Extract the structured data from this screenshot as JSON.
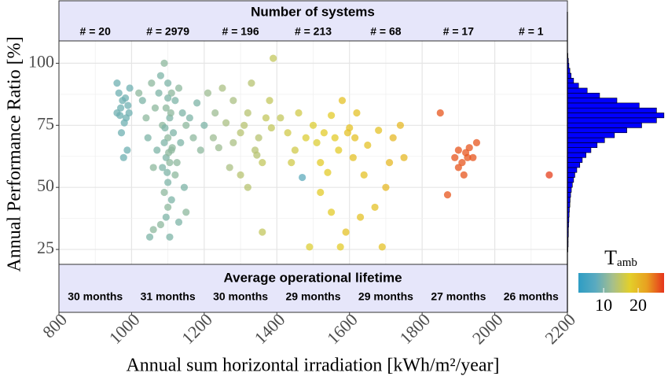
{
  "chart_data": {
    "type": "scatter",
    "xlabel": "Annual sum horizontal irradiation [kWh/m²/year]",
    "ylabel": "Annual Performance Ratio [%]",
    "xlim": [
      800,
      2200
    ],
    "xticks": [
      800,
      1000,
      1200,
      1400,
      1600,
      1800,
      2000,
      2200
    ],
    "ylim": [
      19,
      109
    ],
    "yticks": [
      25,
      50,
      75,
      100
    ],
    "grid": true,
    "top_band": {
      "title": "Number of systems",
      "labels": [
        "# = 20",
        "# = 2979",
        "# = 196",
        "# = 213",
        "# = 68",
        "# = 17",
        "# = 1"
      ]
    },
    "bottom_band": {
      "title": "Average operational lifetime",
      "labels": [
        "30 months",
        "31 months",
        "30 months",
        "29 months",
        "29 months",
        "27 months",
        "26 months"
      ]
    },
    "colorbar": {
      "title": "T",
      "title_sub": "amb",
      "clim": [
        2.7,
        27.5
      ],
      "ticks": [
        10,
        20
      ],
      "colorscale": [
        "#2e9dc4",
        "#5aaac0",
        "#a6bf8c",
        "#e3cf2a",
        "#e8a020",
        "#e6341c"
      ]
    },
    "x": [
      970,
      975,
      960,
      985,
      990,
      965,
      980,
      995,
      972,
      988,
      978,
      960,
      993,
      983,
      968,
      1080,
      1090,
      1100,
      1110,
      1120,
      1095,
      1105,
      1085,
      1115,
      1100,
      1090,
      1110,
      1095,
      1105,
      1085,
      1120,
      1100,
      1090,
      1110,
      1100,
      1095,
      1080,
      1105,
      1060,
      1050,
      1040,
      1030,
      1020,
      1045,
      1130,
      1140,
      1150,
      1135,
      1125,
      1145,
      1060,
      1070,
      1065,
      1075,
      1055,
      1100,
      1108,
      1092,
      1112,
      1098,
      1102,
      1130,
      1150,
      1160,
      1170,
      1180,
      1190,
      1200,
      1210,
      1230,
      1250,
      1260,
      1280,
      1300,
      1320,
      1330,
      1340,
      1350,
      1360,
      1370,
      1380,
      1390,
      1300,
      1280,
      1240,
      1320,
      1360,
      1270,
      1310,
      1345,
      1385,
      1225,
      1410,
      1430,
      1450,
      1460,
      1470,
      1480,
      1490,
      1500,
      1510,
      1520,
      1530,
      1540,
      1550,
      1560,
      1570,
      1580,
      1590,
      1600,
      1610,
      1620,
      1630,
      1640,
      1550,
      1520,
      1440,
      1575,
      1595,
      1615,
      1650,
      1670,
      1690,
      1700,
      1720,
      1740,
      1750,
      1680,
      1710,
      1850,
      1870,
      1890,
      1900,
      1910,
      1920,
      1930,
      1940,
      1950,
      1900,
      1915,
      1925,
      2150
    ],
    "values": [
      82,
      85,
      80,
      78,
      83,
      88,
      76,
      90,
      72,
      65,
      62,
      92,
      80,
      86,
      79,
      95,
      100,
      92,
      88,
      85,
      82,
      78,
      75,
      72,
      70,
      68,
      65,
      62,
      60,
      58,
      55,
      52,
      48,
      45,
      42,
      38,
      35,
      30,
      33,
      30,
      78,
      85,
      88,
      70,
      90,
      80,
      75,
      68,
      60,
      50,
      58,
      65,
      82,
      88,
      92,
      86,
      80,
      74,
      66,
      56,
      64,
      36,
      40,
      78,
      70,
      84,
      65,
      75,
      88,
      80,
      90,
      76,
      85,
      72,
      80,
      92,
      65,
      70,
      60,
      78,
      85,
      102,
      55,
      68,
      66,
      50,
      32,
      58,
      75,
      63,
      74,
      70,
      78,
      72,
      65,
      80,
      54,
      70,
      26,
      75,
      68,
      60,
      72,
      56,
      79,
      70,
      65,
      85,
      32,
      74,
      62,
      80,
      38,
      55,
      40,
      48,
      60,
      26,
      72,
      70,
      67,
      42,
      26,
      50,
      70,
      75,
      62,
      73,
      60,
      80,
      47,
      62,
      65,
      60,
      64,
      66,
      62,
      68,
      58,
      55,
      62,
      55
    ],
    "color_values": [
      9,
      9,
      9,
      9,
      9,
      9,
      9,
      9,
      9,
      9,
      9,
      9,
      9,
      9,
      9,
      10,
      11,
      10,
      11,
      10,
      11,
      10,
      11,
      10,
      11,
      10,
      11,
      10,
      11,
      10,
      11,
      10,
      11,
      10,
      11,
      10,
      11,
      10,
      11,
      10,
      11,
      10,
      11,
      10,
      11,
      10,
      11,
      10,
      11,
      10,
      11,
      10,
      11,
      10,
      11,
      10,
      11,
      10,
      11,
      10,
      11,
      10,
      11,
      10,
      11,
      10,
      11,
      10,
      12,
      12,
      13,
      13,
      13,
      14,
      14,
      14,
      14,
      14,
      15,
      15,
      15,
      15,
      14,
      13,
      12,
      14,
      15,
      13,
      14,
      14,
      15,
      12,
      15,
      16,
      16,
      16,
      8,
      17,
      17,
      17,
      17,
      18,
      18,
      18,
      18,
      18,
      18,
      19,
      19,
      19,
      19,
      19,
      19,
      19,
      18,
      18,
      16,
      18,
      19,
      19,
      19,
      19,
      19,
      20,
      20,
      20,
      20,
      19,
      20,
      26,
      26,
      26,
      26,
      26,
      26,
      26,
      26,
      26,
      26,
      26,
      26,
      27
    ],
    "histogram": {
      "color": "#0000ff",
      "bins": [
        24,
        26,
        28,
        30,
        32,
        34,
        36,
        38,
        40,
        42,
        44,
        46,
        48,
        50,
        52,
        54,
        56,
        58,
        60,
        62,
        64,
        66,
        68,
        70,
        72,
        74,
        76,
        78,
        80,
        82,
        84,
        86,
        88,
        90,
        92,
        94,
        96,
        98,
        100,
        102,
        104
      ],
      "counts": [
        2,
        3,
        3,
        4,
        4,
        5,
        6,
        7,
        8,
        10,
        11,
        13,
        16,
        20,
        25,
        30,
        38,
        50,
        60,
        75,
        95,
        120,
        150,
        190,
        240,
        300,
        360,
        390,
        360,
        290,
        200,
        130,
        80,
        45,
        25,
        15,
        10,
        6,
        4,
        2
      ],
      "xlim": [
        0,
        400
      ]
    }
  }
}
